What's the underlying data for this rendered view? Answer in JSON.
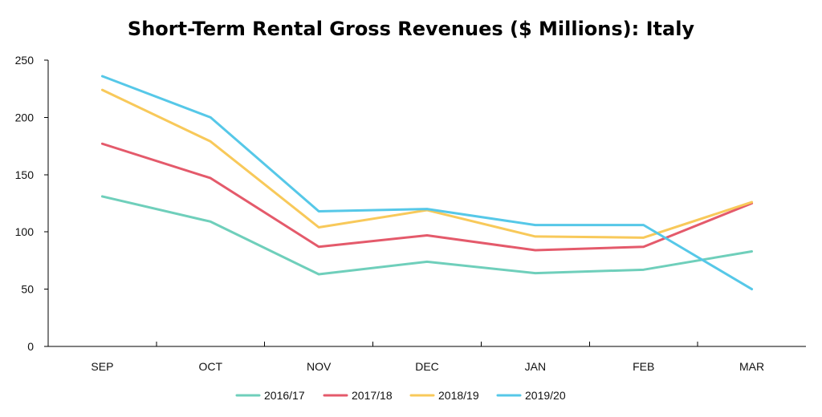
{
  "chart_data": {
    "type": "line",
    "title": "Short-Term Rental Gross Revenues ($ Millions): Italy",
    "xlabel": "",
    "ylabel": "",
    "categories": [
      "SEP",
      "OCT",
      "NOV",
      "DEC",
      "JAN",
      "FEB",
      "MAR"
    ],
    "ylim": [
      0,
      250
    ],
    "yticks": [
      0,
      50,
      100,
      150,
      200,
      250
    ],
    "grid": false,
    "legend_position": "bottom-center",
    "series": [
      {
        "name": "2016/17",
        "color": "#6fcfbb",
        "values": [
          131,
          109,
          63,
          74,
          64,
          67,
          83
        ]
      },
      {
        "name": "2017/18",
        "color": "#e45a6b",
        "values": [
          177,
          147,
          87,
          97,
          84,
          87,
          125
        ]
      },
      {
        "name": "2018/19",
        "color": "#f8c95a",
        "values": [
          224,
          179,
          104,
          119,
          96,
          95,
          126
        ]
      },
      {
        "name": "2019/20",
        "color": "#56c8e8",
        "values": [
          236,
          200,
          118,
          120,
          106,
          106,
          50
        ]
      }
    ]
  }
}
